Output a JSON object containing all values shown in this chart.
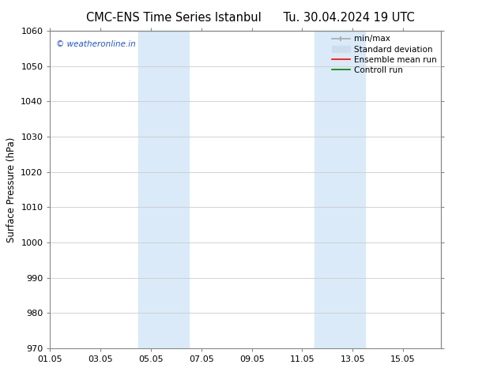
{
  "title_left": "CMC-ENS Time Series Istanbul",
  "title_right": "Tu. 30.04.2024 19 UTC",
  "ylabel": "Surface Pressure (hPa)",
  "ylim": [
    970,
    1060
  ],
  "yticks": [
    970,
    980,
    990,
    1000,
    1010,
    1020,
    1030,
    1040,
    1050,
    1060
  ],
  "xtick_labels": [
    "01.05",
    "03.05",
    "05.05",
    "07.05",
    "09.05",
    "11.05",
    "13.05",
    "15.05"
  ],
  "xtick_positions": [
    0,
    2,
    4,
    6,
    8,
    10,
    12,
    14
  ],
  "xlim": [
    0,
    15.5
  ],
  "shaded_bands": [
    {
      "x_start": 3.5,
      "x_end": 5.5
    },
    {
      "x_start": 10.5,
      "x_end": 12.5
    }
  ],
  "shaded_color": "#daeaf8",
  "background_color": "#ffffff",
  "watermark_text": "© weatheronline.in",
  "watermark_color": "#2255cc",
  "legend_items": [
    {
      "label": "min/max",
      "color": "#aaaaaa",
      "lw": 1.2,
      "linestyle": "-",
      "marker": "|"
    },
    {
      "label": "Standard deviation",
      "color": "#ccdded",
      "lw": 7,
      "linestyle": "-",
      "marker": ""
    },
    {
      "label": "Ensemble mean run",
      "color": "red",
      "lw": 1.2,
      "linestyle": "-",
      "marker": ""
    },
    {
      "label": "Controll run",
      "color": "green",
      "lw": 1.2,
      "linestyle": "-",
      "marker": ""
    }
  ],
  "grid_color": "#cccccc",
  "spine_color": "#888888",
  "title_fontsize": 10.5,
  "label_fontsize": 8.5,
  "tick_fontsize": 8,
  "legend_fontsize": 7.5
}
